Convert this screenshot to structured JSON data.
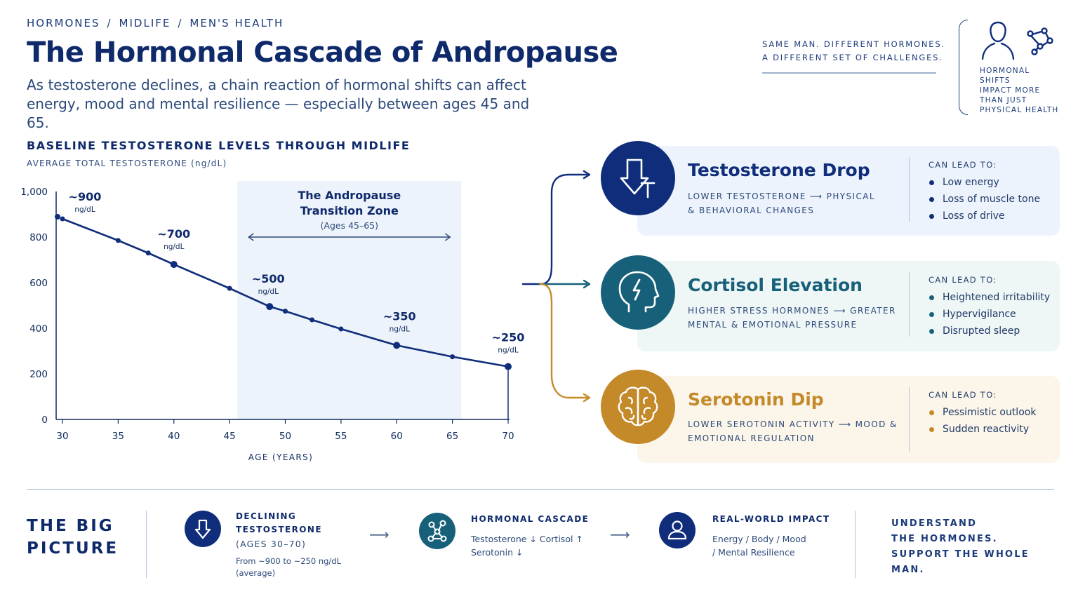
{
  "breadcrumb": {
    "items": [
      "HORMONES",
      "MIDLIFE",
      "MEN'S HEALTH"
    ]
  },
  "header": {
    "title": "The Hormonal Cascade of Andropause",
    "subtitle_line1": "As testosterone declines, a chain reaction of hormonal shifts can affect",
    "subtitle_line2": "energy, mood and mental resilience — especially between ages 45 and 65.",
    "tagline_line1": "SAME MAN.  DIFFERENT HORMONES.",
    "tagline_line2": "A DIFFERENT SET OF CHALLENGES.",
    "side_note": [
      "HORMONAL",
      "SHIFTS",
      "IMPACT MORE",
      "THAN JUST",
      "PHYSICAL HEALTH"
    ]
  },
  "chart_section": {
    "title": "BASELINE TESTOSTERONE LEVELS THROUGH MIDLIFE",
    "subtitle": "AVERAGE TOTAL TESTOSTERONE (ng/dL)"
  },
  "chart_data": {
    "type": "line",
    "title": "BASELINE TESTOSTERONE LEVELS THROUGH MIDLIFE",
    "ylabel": "AVERAGE TOTAL TESTOSTERONE (ng/dL)",
    "xlabel": "AGE (YEARS)",
    "xlim": [
      30,
      70
    ],
    "ylim": [
      0,
      1000
    ],
    "x_ticks": [
      30,
      35,
      40,
      45,
      50,
      55,
      60,
      65,
      70
    ],
    "y_ticks": [
      0,
      200,
      400,
      600,
      800,
      1000
    ],
    "y_tick_labels": [
      "0",
      "200",
      "400",
      "600",
      "800",
      "1,000"
    ],
    "grid": false,
    "series": [
      {
        "x": [
          30,
          35,
          37.7,
          40,
          45,
          48.6,
          50,
          52.4,
          55,
          60,
          65,
          70
        ],
        "y": [
          880,
          785,
          730,
          680,
          575,
          495,
          475,
          437,
          397,
          325,
          275,
          232
        ]
      }
    ],
    "annotations": [
      {
        "x": 30,
        "y": 880,
        "value": "~900",
        "unit": "ng/dL"
      },
      {
        "x": 40,
        "y": 680,
        "value": "~700",
        "unit": "ng/dL"
      },
      {
        "x": 48.6,
        "y": 495,
        "value": "~500",
        "unit": "ng/dL"
      },
      {
        "x": 60,
        "y": 325,
        "value": "~350",
        "unit": "ng/dL"
      },
      {
        "x": 70,
        "y": 232,
        "value": "~250",
        "unit": "ng/dL"
      }
    ],
    "zone": {
      "x_start": 45.7,
      "x_end": 65.8,
      "title_line1": "The Andropause",
      "title_line2": "Transition Zone",
      "range_label": "(Ages 45–65)"
    }
  },
  "cards": [
    {
      "title": "Testosterone Drop",
      "desc_line1": "LOWER TESTOSTERONE ⟶ PHYSICAL",
      "desc_line2": "& BEHAVIORAL CHANGES",
      "lead": "CAN LEAD TO:",
      "items": [
        "Low energy",
        "Loss of muscle tone",
        "Loss of drive"
      ],
      "color": "#0f2d7a",
      "bg": "#edf3fc",
      "icon": "arrow-down-icon"
    },
    {
      "title": "Cortisol Elevation",
      "desc_line1": "HIGHER STRESS HORMONES ⟶ GREATER",
      "desc_line2": "MENTAL & EMOTIONAL PRESSURE",
      "lead": "CAN LEAD TO:",
      "items": [
        "Heightened irritability",
        "Hypervigilance",
        "Disrupted sleep"
      ],
      "color": "#17607a",
      "bg": "#eff6f6",
      "icon": "stressed-head-icon"
    },
    {
      "title": "Serotonin Dip",
      "desc_line1": "LOWER SEROTONIN ACTIVITY ⟶ MOOD &",
      "desc_line2": "EMOTIONAL REGULATION",
      "lead": "CAN LEAD TO:",
      "items": [
        "Pessimistic outlook",
        "Sudden reactivity"
      ],
      "color": "#c48a2a",
      "bg": "#fcf5e9",
      "icon": "brain-icon"
    }
  ],
  "summary": {
    "heading": [
      "THE BIG",
      "PICTURE"
    ],
    "steps": [
      {
        "title": [
          "DECLINING",
          "TESTOSTERONE"
        ],
        "sub": "(AGES 30–70)",
        "text": [
          "From ~900 to ~250 ng/dL",
          "(average)"
        ],
        "icon": "arrow-down-icon",
        "color": "#0f2d7a"
      },
      {
        "title": [
          "HORMONAL CASCADE"
        ],
        "text": [
          "Testosterone ↓  Cortisol ↑",
          "Serotonin ↓"
        ],
        "icon": "molecule-icon",
        "color": "#17607a"
      },
      {
        "title": [
          "REAL-WORLD IMPACT"
        ],
        "text": [
          "Energy  /  Body  /  Mood",
          "/  Mental Resilience"
        ],
        "icon": "person-icon",
        "color": "#0f2d7a"
      }
    ],
    "arrow": "⟶",
    "closing": [
      "UNDERSTAND",
      "THE HORMONES.",
      "SUPPORT THE WHOLE MAN."
    ]
  }
}
